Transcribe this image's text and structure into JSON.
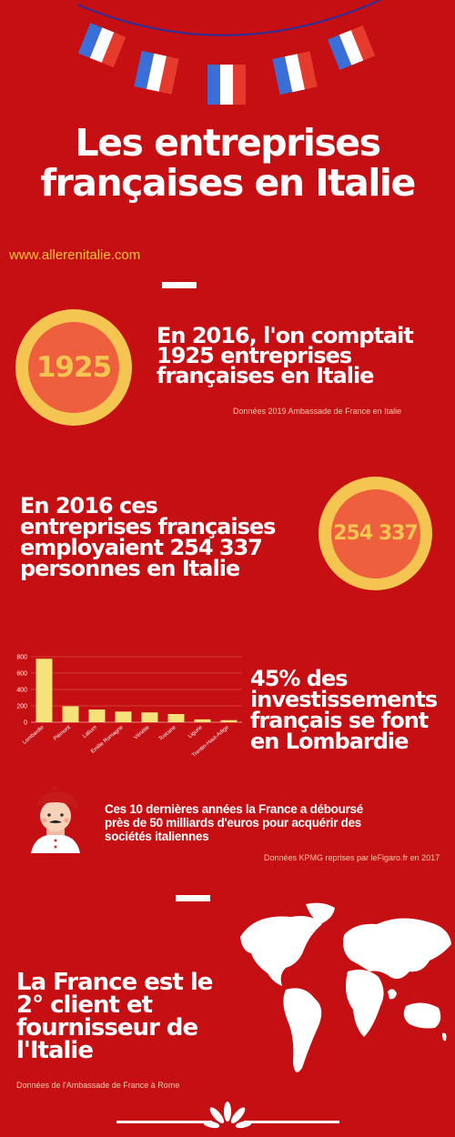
{
  "header": {
    "title_line1": "Les entreprises",
    "title_line2": "françaises en Italie",
    "site": "www.allerenitalie.com"
  },
  "block1": {
    "number": "1925",
    "line1": "En 2016, l'on comptait",
    "line2": "1925 entreprises",
    "line3": "françaises en Italie",
    "source": "Données 2019 Ambassade de France en Italie"
  },
  "block2": {
    "line1": "En 2016 ces",
    "line2": "entreprises françaises",
    "line3": "employaient 254 337",
    "line4": "personnes en Italie",
    "number": "254 337"
  },
  "block3": {
    "line1": "45% des",
    "line2": "investissements",
    "line3": "français se font",
    "line4": "en Lombardie"
  },
  "chart_data": {
    "type": "bar",
    "categories": [
      "Lombardie",
      "Piémont",
      "Latium",
      "Emilie Romagne",
      "Vénétie",
      "Toscane",
      "Ligurie",
      "Trentin-Haut-Adige"
    ],
    "values": [
      775,
      195,
      155,
      130,
      120,
      100,
      35,
      25
    ],
    "ylim": [
      0,
      800
    ],
    "yticks": [
      "0",
      "200",
      "400",
      "600",
      "800"
    ],
    "grid": true,
    "bar_color": "#f6e27a"
  },
  "block4": {
    "line1": "Ces 10 dernières années la France a déboursé",
    "line2": "près de 50 milliards d'euros pour acquérir des",
    "line3": "sociétés italiennes",
    "source": "Données KPMG reprises par leFigaro.fr en 2017"
  },
  "block5": {
    "line1": "La France est le",
    "line2": "2° client et",
    "line3": "fournisseur de",
    "line4": "l'Italie",
    "source": "Données de l'Ambassade de France à Rome"
  },
  "colors": {
    "background": "#c50f12",
    "accent_yellow": "#f4c550",
    "accent_orange": "#ee5f3d",
    "flag_blue": "#3b6fd8",
    "flag_red": "#e53a2c"
  }
}
